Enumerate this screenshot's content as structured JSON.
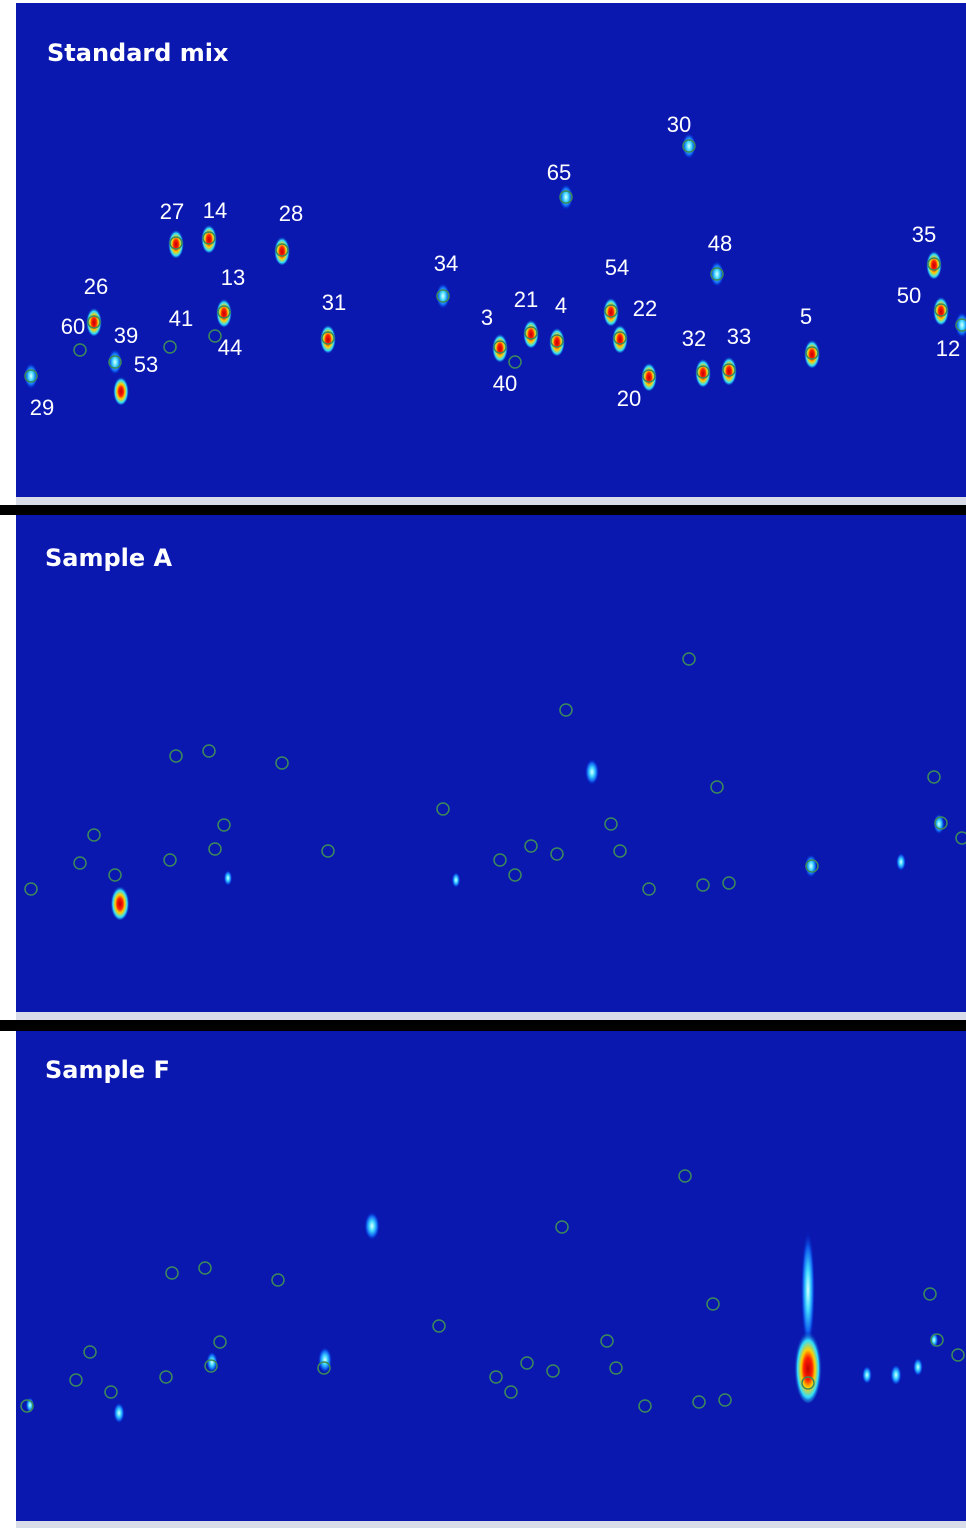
{
  "panels": [
    {
      "title": "Standard mix",
      "peaks": [
        "30",
        "65",
        "27",
        "14",
        "28",
        "48",
        "35",
        "13",
        "34",
        "54",
        "26",
        "41",
        "31",
        "21",
        "4",
        "22",
        "50",
        "60",
        "39",
        "44",
        "3",
        "5",
        "32",
        "33",
        "12",
        "53",
        "40",
        "20",
        "29"
      ]
    },
    {
      "title": "Sample A"
    },
    {
      "title": "Sample F"
    }
  ]
}
